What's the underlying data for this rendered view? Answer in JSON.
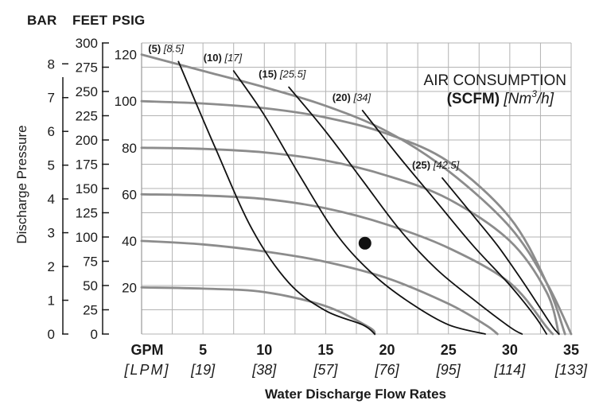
{
  "chart_data": {
    "type": "line",
    "title": "AIR CONSUMPTION",
    "subtitle_bold": "(SCFM)",
    "subtitle_unit_italic": "[Nm",
    "subtitle_unit_sup": "3",
    "subtitle_unit_tail": "/h]",
    "column_headers": [
      "BAR",
      "FEET",
      "PSIG"
    ],
    "ylabel": "Discharge Pressure",
    "xlabel": "Water Discharge Flow Rates",
    "x_unit_primary": "GPM",
    "x_unit_secondary": "[LPM]",
    "x_ticks": [
      {
        "gpm": "5",
        "lpm": "[19]"
      },
      {
        "gpm": "10",
        "lpm": "[38]"
      },
      {
        "gpm": "15",
        "lpm": "[57]"
      },
      {
        "gpm": "20",
        "lpm": "[76]"
      },
      {
        "gpm": "25",
        "lpm": "[95]"
      },
      {
        "gpm": "30",
        "lpm": "[114]"
      },
      {
        "gpm": "35",
        "lpm": "[133]"
      }
    ],
    "xlim": [
      0,
      35
    ],
    "ylim_psig": [
      0,
      125
    ],
    "bar_ticks": [
      "0",
      "1",
      "2",
      "3",
      "4",
      "5",
      "6",
      "7",
      "8"
    ],
    "feet_ticks": [
      "0",
      "25",
      "50",
      "75",
      "100",
      "125",
      "150",
      "175",
      "200",
      "225",
      "250",
      "275",
      "300"
    ],
    "psig_ticks": [
      "20",
      "40",
      "60",
      "80",
      "100",
      "120"
    ],
    "grid": true,
    "pressure_curves": [
      {
        "points": [
          [
            0,
            20
          ],
          [
            5,
            19.5
          ],
          [
            10,
            18
          ],
          [
            15,
            12
          ],
          [
            18.5,
            3
          ],
          [
            19,
            0
          ]
        ]
      },
      {
        "points": [
          [
            0,
            40
          ],
          [
            5,
            38.5
          ],
          [
            10,
            35.5
          ],
          [
            15,
            31
          ],
          [
            20,
            24
          ],
          [
            25,
            13
          ],
          [
            28,
            4
          ],
          [
            29,
            0
          ]
        ]
      },
      {
        "points": [
          [
            0,
            60
          ],
          [
            5,
            59.5
          ],
          [
            10,
            58
          ],
          [
            15,
            54
          ],
          [
            20,
            47
          ],
          [
            25,
            37
          ],
          [
            30,
            22
          ],
          [
            33,
            3
          ],
          [
            33.5,
            0
          ]
        ]
      },
      {
        "points": [
          [
            0,
            80
          ],
          [
            5,
            79.5
          ],
          [
            10,
            78
          ],
          [
            15,
            74.5
          ],
          [
            20,
            68
          ],
          [
            25,
            58
          ],
          [
            30,
            40
          ],
          [
            33,
            18
          ],
          [
            34,
            0
          ]
        ]
      },
      {
        "points": [
          [
            0,
            100
          ],
          [
            5,
            99
          ],
          [
            10,
            97
          ],
          [
            15,
            93
          ],
          [
            20,
            86
          ],
          [
            25,
            74
          ],
          [
            30,
            50
          ],
          [
            33,
            22
          ],
          [
            34.5,
            0
          ]
        ]
      },
      {
        "points": [
          [
            0,
            120
          ],
          [
            5,
            113
          ],
          [
            10,
            106
          ],
          [
            15,
            98
          ],
          [
            20,
            87
          ],
          [
            25,
            70
          ],
          [
            30,
            46
          ],
          [
            33,
            22
          ],
          [
            35,
            0
          ]
        ]
      }
    ],
    "air_curves": [
      {
        "label_bold": "(5)",
        "label_ital": "[8.5]",
        "points": [
          [
            3,
            117
          ],
          [
            6,
            80
          ],
          [
            9,
            45
          ],
          [
            12,
            22
          ],
          [
            15,
            10
          ],
          [
            18,
            4
          ],
          [
            19,
            0
          ]
        ]
      },
      {
        "label_bold": "(10)",
        "label_ital": "[17]",
        "points": [
          [
            7.5,
            113
          ],
          [
            10,
            94
          ],
          [
            13,
            67
          ],
          [
            16,
            42
          ],
          [
            19,
            25
          ],
          [
            22,
            13
          ],
          [
            25,
            4
          ],
          [
            28,
            0
          ]
        ]
      },
      {
        "label_bold": "(15)",
        "label_ital": "[25.5]",
        "points": [
          [
            12,
            106
          ],
          [
            15,
            87
          ],
          [
            18,
            66
          ],
          [
            21,
            45
          ],
          [
            24,
            28
          ],
          [
            27,
            15
          ],
          [
            30,
            3
          ],
          [
            31,
            0
          ]
        ]
      },
      {
        "label_bold": "(20)",
        "label_ital": "[34]",
        "points": [
          [
            18,
            96
          ],
          [
            21,
            76
          ],
          [
            24,
            57
          ],
          [
            27,
            38
          ],
          [
            30,
            21
          ],
          [
            32,
            8
          ],
          [
            33,
            0
          ]
        ]
      },
      {
        "label_bold": "(25)",
        "label_ital": "[42.5]",
        "points": [
          [
            24.5,
            67
          ],
          [
            27,
            51
          ],
          [
            29,
            38
          ],
          [
            31,
            23
          ],
          [
            32.5,
            11
          ],
          [
            33.5,
            3
          ],
          [
            34,
            0
          ]
        ]
      }
    ],
    "operating_point": {
      "x": 18.2,
      "y": 39
    }
  }
}
